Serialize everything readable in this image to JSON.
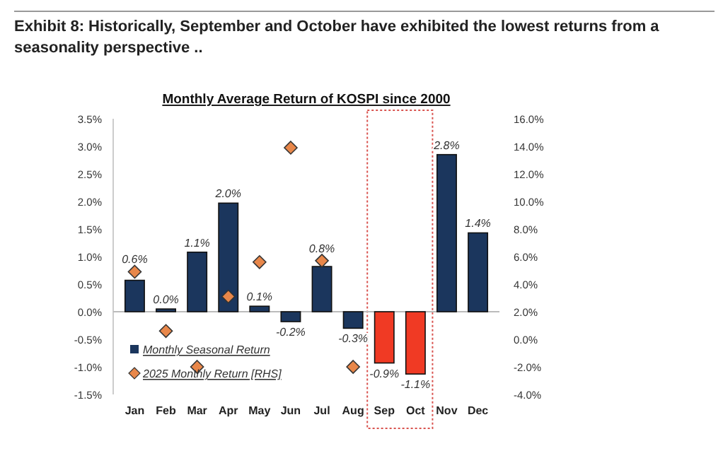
{
  "chart_data": {
    "type": "bar",
    "title": "Exhibit 8: Historically, September and October have exhibited the lowest returns from a seasonality perspective ..",
    "subtitle": "Monthly Average Return of KOSPI since 2000",
    "categories": [
      "Jan",
      "Feb",
      "Mar",
      "Apr",
      "May",
      "Jun",
      "Jul",
      "Aug",
      "Sep",
      "Oct",
      "Nov",
      "Dec"
    ],
    "series": [
      {
        "name": "Monthly Seasonal Return",
        "color": "#1b365d",
        "colors": [
          "#1b365d",
          "#1b365d",
          "#1b365d",
          "#1b365d",
          "#1b365d",
          "#1b365d",
          "#1b365d",
          "#1b365d",
          "#f03a24",
          "#f03a24",
          "#1b365d",
          "#1b365d"
        ],
        "values": [
          0.57,
          0.05,
          1.08,
          1.97,
          0.1,
          -0.18,
          0.82,
          -0.3,
          -0.93,
          -1.13,
          2.85,
          1.43
        ],
        "value_labels": [
          "0.6%",
          "0.0%",
          "1.1%",
          "2.0%",
          "0.1%",
          "-0.2%",
          "0.8%",
          "-0.3%",
          "-0.9%",
          "-1.1%",
          "2.8%",
          "1.4%"
        ]
      },
      {
        "name": "2025 Monthly Return [RHS]",
        "type": "scatter",
        "axis": "y2",
        "color": "#e8874a",
        "values": [
          4.9,
          0.6,
          -2.0,
          3.1,
          5.6,
          13.9,
          5.7,
          -2.0,
          null,
          null,
          null,
          null
        ]
      }
    ],
    "ylim": [
      -1.5,
      3.5
    ],
    "yticks": [
      {
        "value": -1.5,
        "label": "-1.5%"
      },
      {
        "value": -1,
        "label": "-1.0%"
      },
      {
        "value": -0.5,
        "label": "-0.5%"
      },
      {
        "value": 0,
        "label": "0.0%"
      },
      {
        "value": 0.5,
        "label": "0.5%"
      },
      {
        "value": 1,
        "label": "1.0%"
      },
      {
        "value": 1.5,
        "label": "1.5%"
      },
      {
        "value": 2,
        "label": "2.0%"
      },
      {
        "value": 2.5,
        "label": "2.5%"
      },
      {
        "value": 3,
        "label": "3.0%"
      },
      {
        "value": 3.5,
        "label": "3.5%"
      }
    ],
    "y2lim": [
      -4,
      16
    ],
    "y2ticks": [
      {
        "value": -4,
        "label": "-4.0%"
      },
      {
        "value": -2,
        "label": "-2.0%"
      },
      {
        "value": 0,
        "label": "0.0%"
      },
      {
        "value": 2,
        "label": "2.0%"
      },
      {
        "value": 4,
        "label": "4.0%"
      },
      {
        "value": 6,
        "label": "6.0%"
      },
      {
        "value": 8,
        "label": "8.0%"
      },
      {
        "value": 10,
        "label": "10.0%"
      },
      {
        "value": 12,
        "label": "12.0%"
      },
      {
        "value": 14,
        "label": "14.0%"
      },
      {
        "value": 16,
        "label": "16.0%"
      }
    ],
    "marker": "diamond",
    "legend": "bottom left"
  }
}
